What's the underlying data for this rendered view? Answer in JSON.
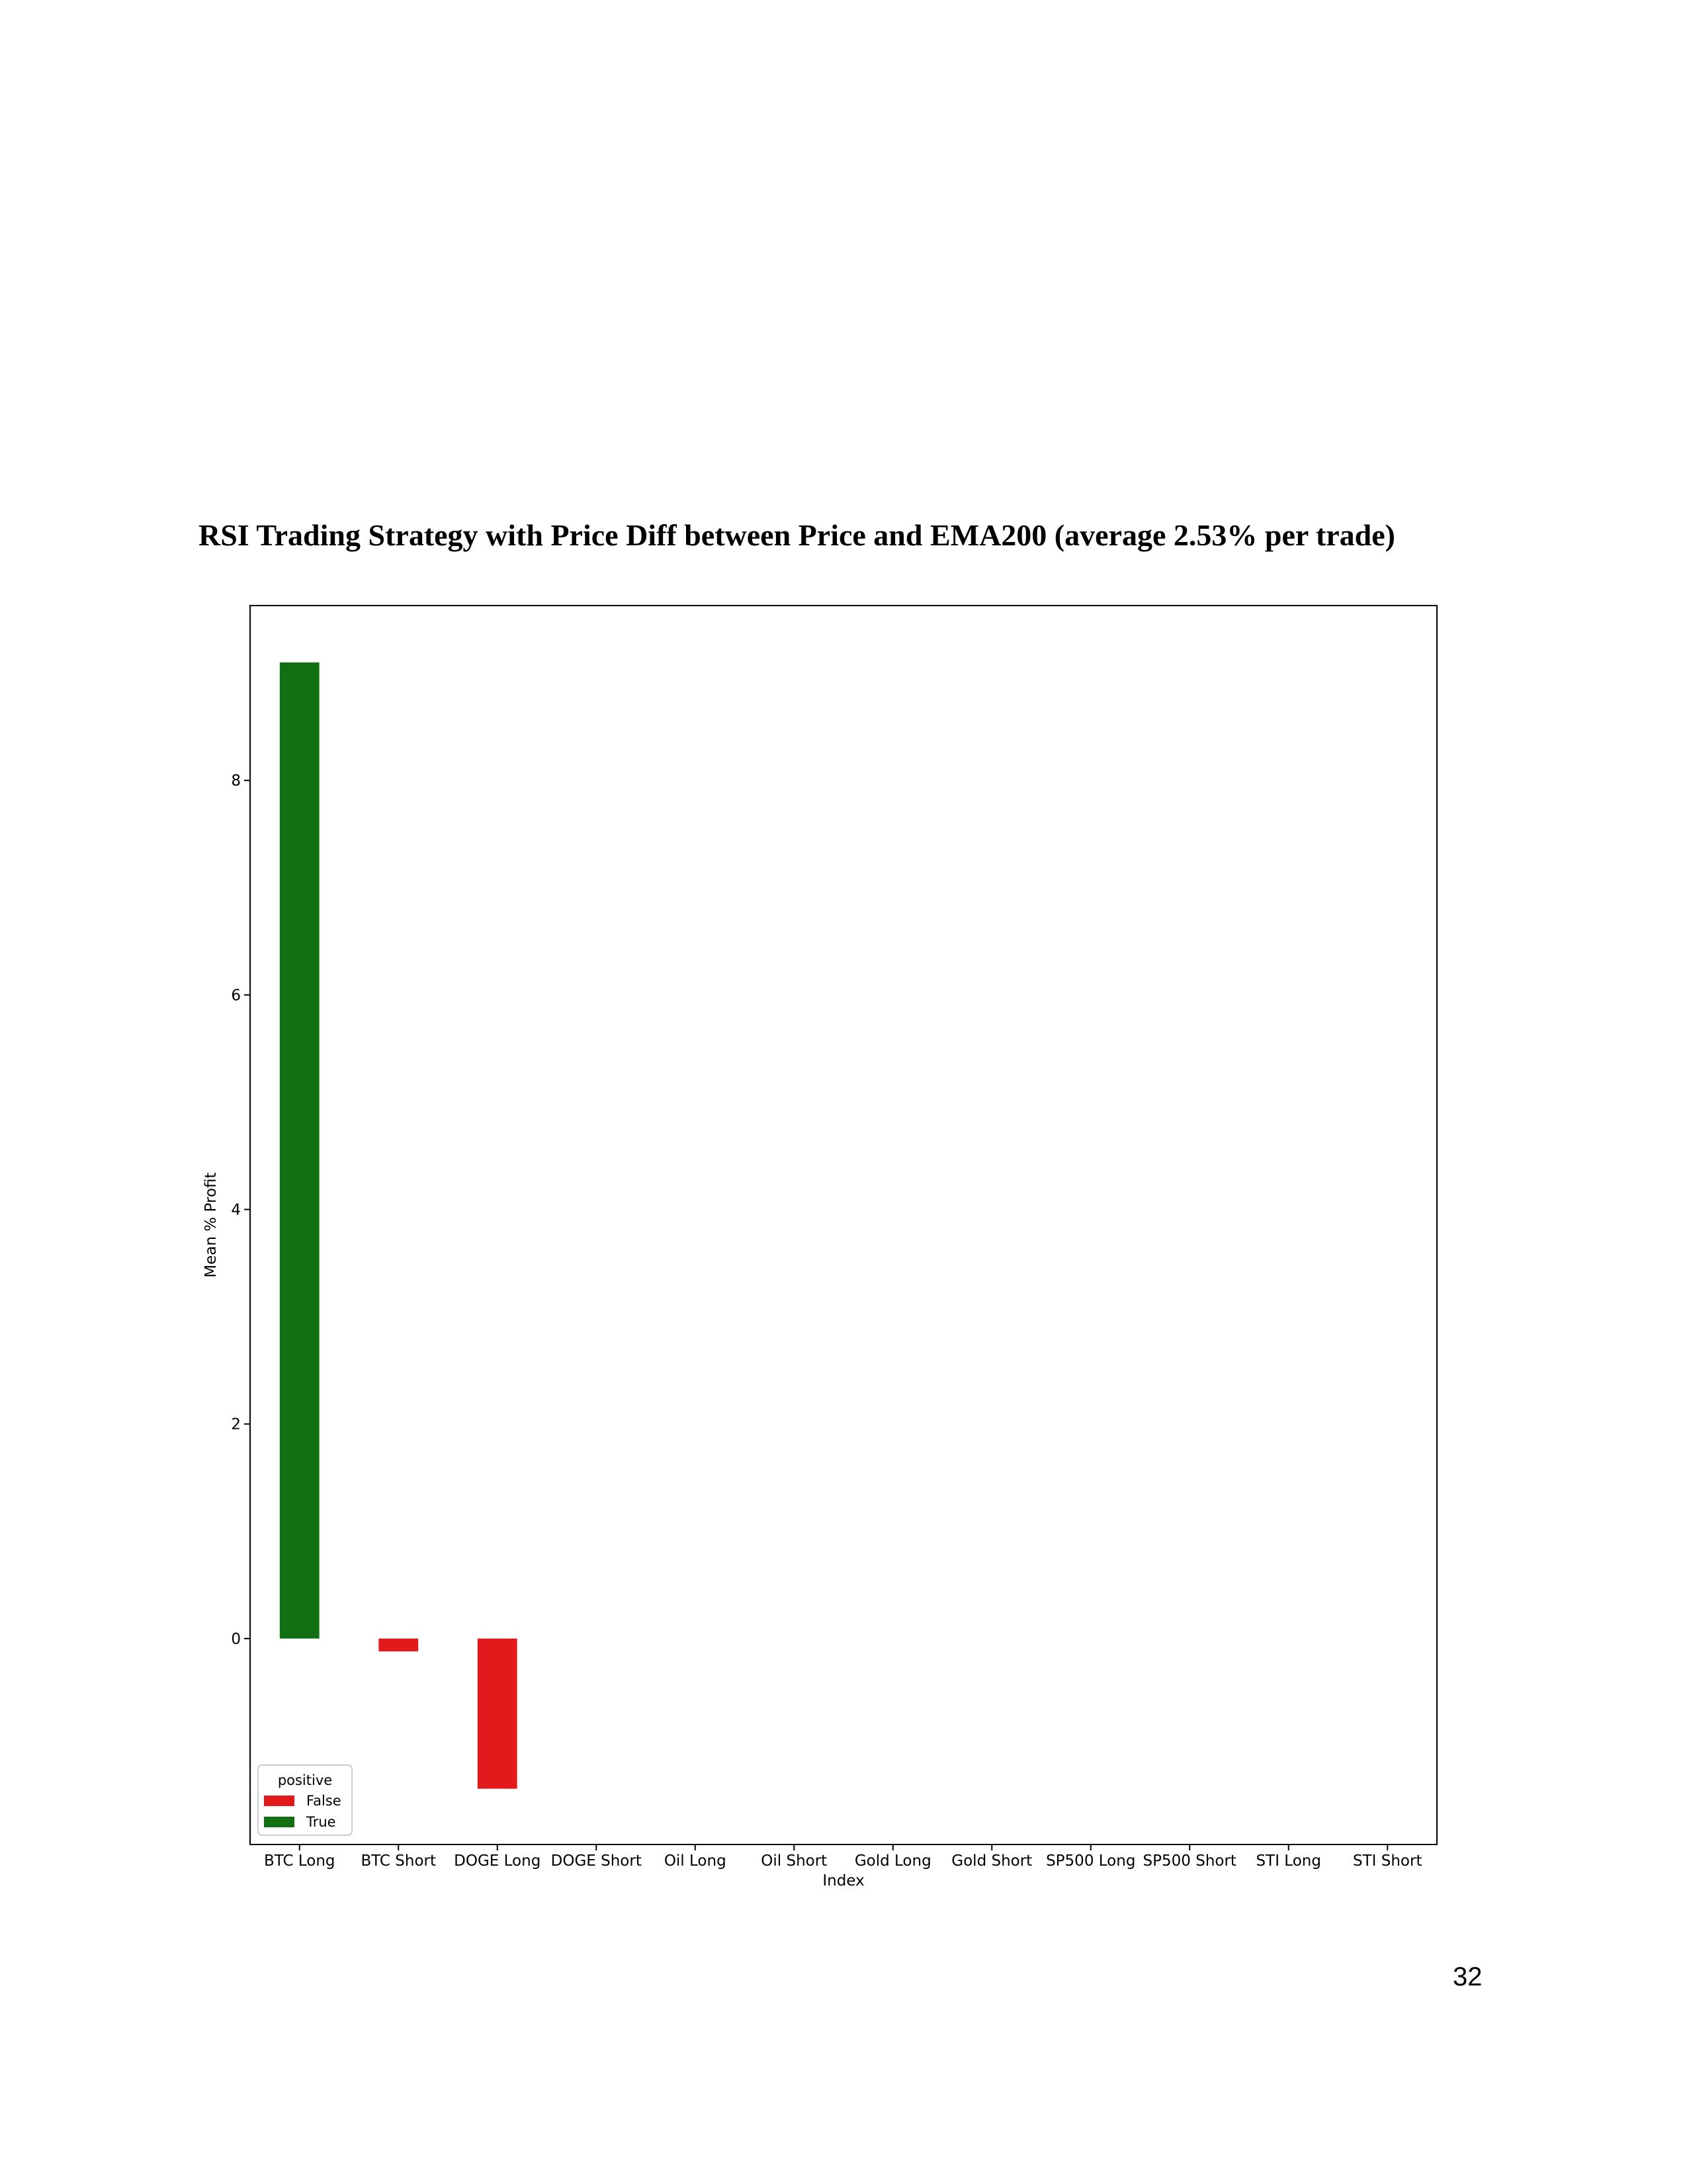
{
  "page": {
    "title": "RSI Trading Strategy with Price Diff between Price and EMA200 (average 2.53% per trade)",
    "page_number": "32"
  },
  "chart_data": {
    "type": "bar",
    "categories": [
      "BTC Long",
      "BTC Short",
      "DOGE Long",
      "DOGE Short",
      "Oil Long",
      "Oil Short",
      "Gold Long",
      "Gold Short",
      "SP500 Long",
      "SP500 Short",
      "STI Long",
      "STI Short"
    ],
    "values": [
      9.1,
      -0.12,
      -1.4,
      null,
      null,
      null,
      null,
      null,
      null,
      null,
      null,
      null
    ],
    "positive": [
      true,
      false,
      false,
      null,
      null,
      null,
      null,
      null,
      null,
      null,
      null,
      null
    ],
    "xlabel": "Index",
    "ylabel": "Mean % Profit",
    "ylim": [
      -1.92,
      9.63
    ],
    "yticks": [
      0,
      2,
      4,
      6,
      8
    ],
    "grid": false,
    "legend": {
      "title": "positive",
      "placement": "lower-left",
      "entries": [
        {
          "label": "False",
          "color": "#e31a1c"
        },
        {
          "label": "True",
          "color": "#117011"
        }
      ]
    },
    "colors": {
      "true": "#117011",
      "false": "#e31a1c"
    }
  }
}
